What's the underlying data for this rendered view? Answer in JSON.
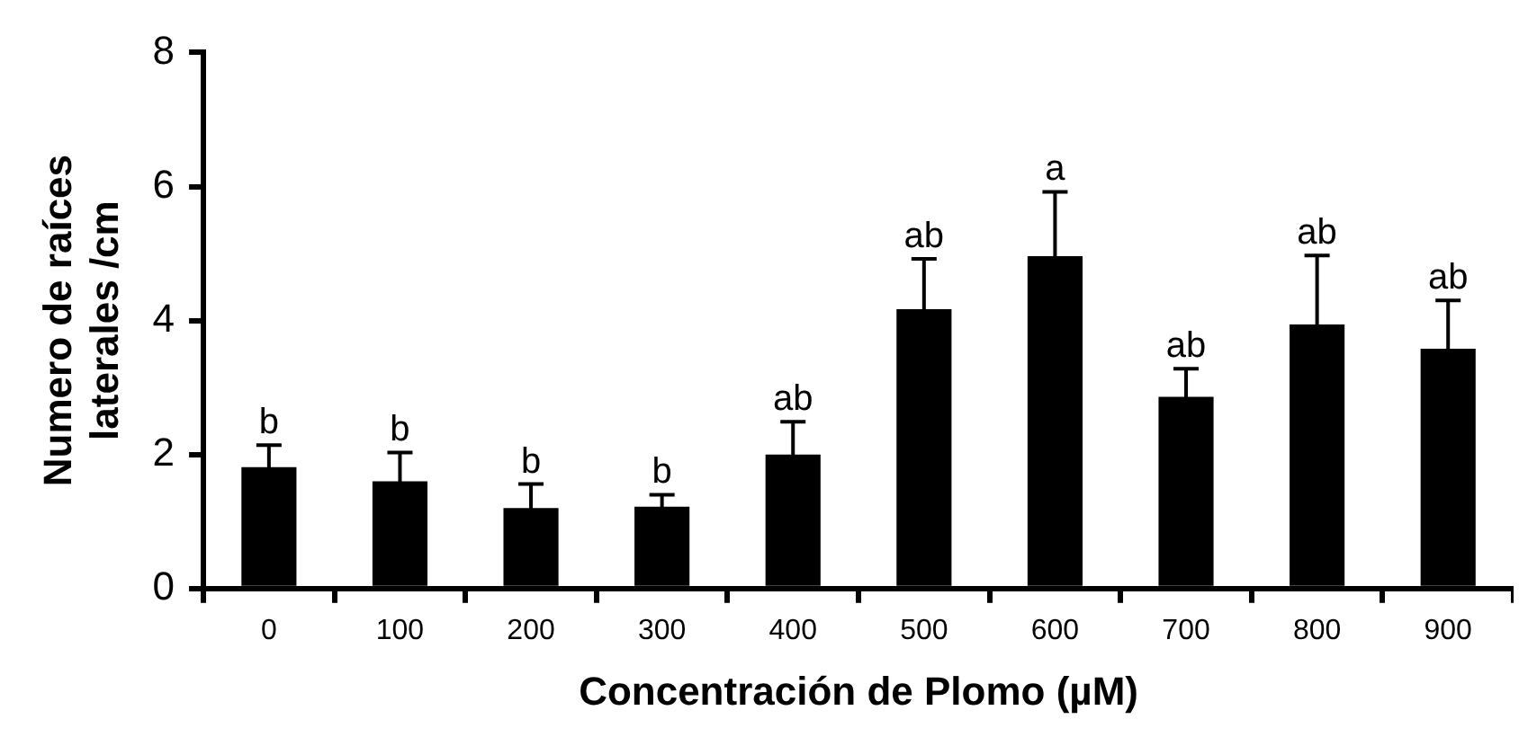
{
  "chart_data": {
    "type": "bar",
    "xlabel": "Concentración de Plomo (µM)",
    "ylabel": "Numero de raíces laterales /cm",
    "categories": [
      "0",
      "100",
      "200",
      "300",
      "400",
      "500",
      "600",
      "700",
      "800",
      "900"
    ],
    "values": [
      1.81,
      1.6,
      1.2,
      1.22,
      2.0,
      4.17,
      4.96,
      2.86,
      3.94,
      3.58
    ],
    "errors": [
      0.33,
      0.43,
      0.36,
      0.18,
      0.49,
      0.75,
      0.96,
      0.42,
      1.03,
      0.72
    ],
    "color": "#000000",
    "ylim": [
      0,
      8
    ],
    "yticks": [
      0,
      2,
      4,
      6,
      8
    ],
    "grid": false,
    "legend": false,
    "annotations": [
      {
        "text": "b",
        "x": "0",
        "y": 2.14
      },
      {
        "text": "b",
        "x": "100",
        "y": 2.03
      },
      {
        "text": "b",
        "x": "200",
        "y": 1.56
      },
      {
        "text": "b",
        "x": "300",
        "y": 1.4
      },
      {
        "text": "ab",
        "x": "400",
        "y": 2.49
      },
      {
        "text": "ab",
        "x": "500",
        "y": 4.92
      },
      {
        "text": "a",
        "x": "600",
        "y": 5.92
      },
      {
        "text": "ab",
        "x": "700",
        "y": 3.28
      },
      {
        "text": "ab",
        "x": "800",
        "y": 4.97
      },
      {
        "text": "ab",
        "x": "900",
        "y": 4.3
      }
    ]
  }
}
